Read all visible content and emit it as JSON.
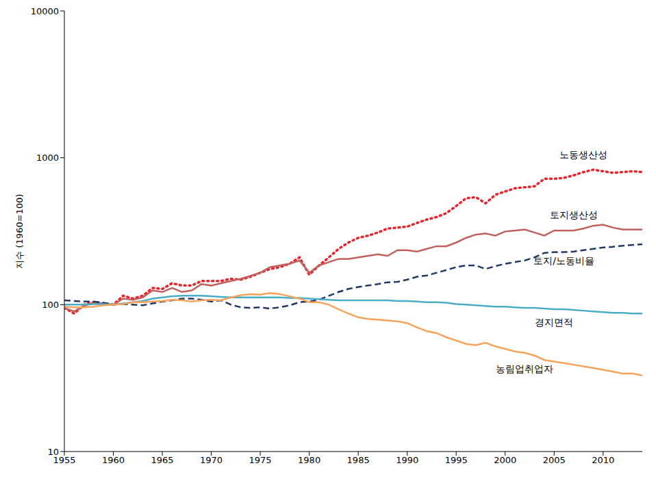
{
  "chart_data": {
    "type": "line",
    "y_label": "지수 (1960=100)",
    "log": "y",
    "grid": false,
    "x": [
      1955,
      1956,
      1957,
      1958,
      1959,
      1960,
      1961,
      1962,
      1963,
      1964,
      1965,
      1966,
      1967,
      1968,
      1969,
      1970,
      1971,
      1972,
      1973,
      1974,
      1975,
      1976,
      1977,
      1978,
      1979,
      1980,
      1981,
      1982,
      1983,
      1984,
      1985,
      1986,
      1987,
      1988,
      1989,
      1990,
      1991,
      1992,
      1993,
      1994,
      1995,
      1996,
      1997,
      1998,
      1999,
      2000,
      2001,
      2002,
      2003,
      2004,
      2005,
      2006,
      2007,
      2008,
      2009,
      2010,
      2011,
      2012,
      2013,
      2014
    ],
    "xlim": [
      1955,
      2014
    ],
    "xticks": [
      1955,
      1960,
      1965,
      1970,
      1975,
      1980,
      1985,
      1990,
      1995,
      2000,
      2005,
      2010
    ],
    "ylim": [
      10,
      10000
    ],
    "yticks": [
      10,
      100,
      1000,
      10000
    ],
    "series": [
      {
        "name": "노동생산성",
        "color": "#E8232A",
        "line_style": "dotted",
        "values": [
          95,
          87,
          100,
          104,
          102,
          100,
          115,
          110,
          115,
          130,
          128,
          140,
          135,
          135,
          145,
          145,
          145,
          150,
          148,
          155,
          165,
          175,
          180,
          190,
          210,
          160,
          185,
          210,
          240,
          265,
          285,
          295,
          310,
          330,
          335,
          340,
          360,
          380,
          395,
          420,
          470,
          530,
          540,
          490,
          560,
          590,
          620,
          630,
          640,
          720,
          720,
          730,
          760,
          800,
          830,
          810,
          790,
          800,
          810,
          800
        ]
      },
      {
        "name": "토지생산성",
        "color": "#C0605C",
        "line_style": "solid",
        "values": [
          95,
          90,
          98,
          103,
          102,
          100,
          110,
          108,
          112,
          125,
          122,
          130,
          122,
          125,
          138,
          135,
          140,
          145,
          150,
          157,
          165,
          180,
          185,
          190,
          200,
          165,
          185,
          195,
          205,
          205,
          210,
          215,
          220,
          215,
          235,
          235,
          230,
          240,
          250,
          250,
          265,
          285,
          300,
          305,
          295,
          315,
          320,
          325,
          310,
          295,
          320,
          320,
          320,
          330,
          345,
          350,
          335,
          325,
          325,
          325
        ]
      },
      {
        "name": "토지/노동비율",
        "color": "#1F3864",
        "line_style": "dashed",
        "values": [
          107,
          106,
          105,
          105,
          103,
          100,
          101,
          100,
          99,
          102,
          105,
          107,
          110,
          110,
          108,
          105,
          107,
          100,
          96,
          95,
          96,
          94,
          96,
          99,
          104,
          105,
          108,
          115,
          122,
          128,
          132,
          135,
          138,
          142,
          143,
          148,
          155,
          158,
          165,
          172,
          180,
          185,
          185,
          175,
          183,
          190,
          195,
          200,
          210,
          225,
          228,
          228,
          230,
          235,
          240,
          245,
          248,
          252,
          255,
          258
        ]
      },
      {
        "name": "경지면적",
        "color": "#4BACC6",
        "line_style": "solid",
        "values": [
          100,
          100,
          100,
          101,
          101,
          100,
          102,
          104,
          106,
          110,
          112,
          114,
          115,
          115,
          115,
          114,
          113,
          112,
          112,
          112,
          112,
          112,
          112,
          111,
          111,
          110,
          109,
          108,
          107,
          107,
          107,
          107,
          107,
          107,
          106,
          106,
          105,
          104,
          104,
          103,
          101,
          100,
          99,
          98,
          97,
          97,
          96,
          95,
          95,
          94,
          93,
          93,
          92,
          91,
          90,
          89,
          88,
          88,
          87,
          87
        ]
      },
      {
        "name": "농림업취업자",
        "color": "#F7A35C",
        "line_style": "solid",
        "values": [
          97,
          96,
          96,
          97,
          99,
          100,
          101,
          104,
          104,
          105,
          106,
          108,
          107,
          105,
          107,
          108,
          107,
          112,
          116,
          118,
          117,
          120,
          118,
          114,
          110,
          104,
          104,
          100,
          93,
          87,
          82,
          80,
          79,
          78,
          77,
          75,
          70,
          66,
          64,
          60,
          57,
          54,
          53,
          55,
          52,
          50,
          48,
          47,
          45,
          42,
          41,
          40,
          39,
          38,
          37,
          36,
          35,
          34,
          34,
          33
        ]
      }
    ]
  }
}
